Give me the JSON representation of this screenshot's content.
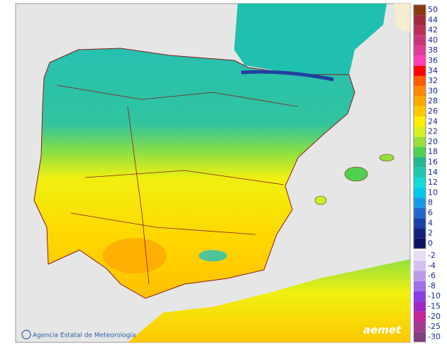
{
  "legend": {
    "scale": [
      {
        "label": "50",
        "color": "#8a3a10"
      },
      {
        "label": "44",
        "color": "#a02a3c"
      },
      {
        "label": "42",
        "color": "#b83058"
      },
      {
        "label": "40",
        "color": "#c83878"
      },
      {
        "label": "38",
        "color": "#e03c98"
      },
      {
        "label": "36",
        "color": "#ff40b4"
      },
      {
        "label": "34",
        "color": "#ff0000"
      },
      {
        "label": "32",
        "color": "#ff5a00"
      },
      {
        "label": "30",
        "color": "#ff8800"
      },
      {
        "label": "28",
        "color": "#ffa800"
      },
      {
        "label": "26",
        "color": "#ffc800"
      },
      {
        "label": "24",
        "color": "#ffee00"
      },
      {
        "label": "22",
        "color": "#d8f020"
      },
      {
        "label": "20",
        "color": "#98e038"
      },
      {
        "label": "18",
        "color": "#50d050"
      },
      {
        "label": "16",
        "color": "#20b890"
      },
      {
        "label": "14",
        "color": "#20c8b0"
      },
      {
        "label": "12",
        "color": "#10dcd8"
      },
      {
        "label": "10",
        "color": "#00c8f0"
      },
      {
        "label": "8",
        "color": "#1898e8"
      },
      {
        "label": "6",
        "color": "#2068d0"
      },
      {
        "label": "4",
        "color": "#1840a8"
      },
      {
        "label": "2",
        "color": "#142080"
      },
      {
        "label": "0",
        "color": "#0c1060"
      },
      {
        "label": "-2",
        "color": "#e8dcf4"
      },
      {
        "label": "-4",
        "color": "#d4c0ee"
      },
      {
        "label": "-6",
        "color": "#bc9ce8"
      },
      {
        "label": "-8",
        "color": "#a070e4"
      },
      {
        "label": "-10",
        "color": "#8840e0"
      },
      {
        "label": "-15",
        "color": "#a028c0"
      },
      {
        "label": "-20",
        "color": "#c02898"
      },
      {
        "label": "-25",
        "color": "#a03c90"
      },
      {
        "label": "-30",
        "color": "#804080"
      }
    ]
  },
  "footer": {
    "agency": "Agencia Estatal de Meteorología",
    "logo": "aemet"
  }
}
